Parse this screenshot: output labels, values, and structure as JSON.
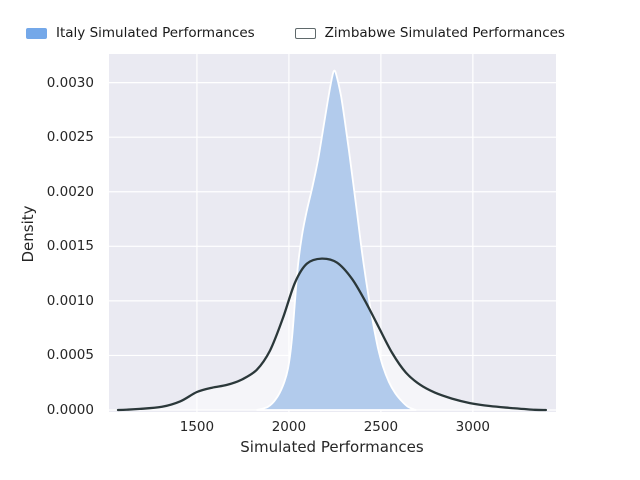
{
  "chart_data": {
    "type": "area",
    "chart_kind": "kde-density-overlay",
    "title": "",
    "xlabel": "Simulated Performances",
    "ylabel": "Density",
    "xlim": [
      1022,
      3452
    ],
    "ylim": [
      -1.8e-05,
      0.003262
    ],
    "x_ticks": [
      1500,
      2000,
      2500,
      3000
    ],
    "x_tick_labels": [
      "1500",
      "2000",
      "2500",
      "3000"
    ],
    "y_ticks": [
      0.0,
      0.0005,
      0.001,
      0.0015,
      0.002,
      0.0025,
      0.003
    ],
    "y_tick_labels": [
      "0.0000",
      "0.0005",
      "0.0010",
      "0.0015",
      "0.0020",
      "0.0025",
      "0.0030"
    ],
    "grid": true,
    "grid_color": "#ffffff",
    "plot_background": "#eaeaf2",
    "figure_background": "#ffffff",
    "text_color": "#262626",
    "legend_position": "top",
    "series": [
      {
        "name": "Italy Simulated Performances",
        "style": "filled-area",
        "area_fill": "#b2cbec",
        "edge_color": "#ffffff",
        "swatch": {
          "fill": "#74a8e9",
          "border": "#74a8e9"
        },
        "peak": {
          "x": 2247,
          "density": 0.00311
        },
        "points": [
          [
            1826,
            0.0
          ],
          [
            1886,
            3e-05
          ],
          [
            1929,
            0.0001
          ],
          [
            1967,
            0.00022
          ],
          [
            1995,
            0.00038
          ],
          [
            2016,
            0.00064
          ],
          [
            2033,
            0.001
          ],
          [
            2049,
            0.00132
          ],
          [
            2071,
            0.0016
          ],
          [
            2098,
            0.00183
          ],
          [
            2130,
            0.00206
          ],
          [
            2158,
            0.00229
          ],
          [
            2185,
            0.00256
          ],
          [
            2212,
            0.00284
          ],
          [
            2234,
            0.00304
          ],
          [
            2247,
            0.00311
          ],
          [
            2261,
            0.00305
          ],
          [
            2283,
            0.00288
          ],
          [
            2304,
            0.00265
          ],
          [
            2326,
            0.00238
          ],
          [
            2348,
            0.0021
          ],
          [
            2370,
            0.00181
          ],
          [
            2391,
            0.00153
          ],
          [
            2413,
            0.00126
          ],
          [
            2435,
            0.00102
          ],
          [
            2457,
            0.0008
          ],
          [
            2484,
            0.00057
          ],
          [
            2511,
            0.0004
          ],
          [
            2543,
            0.00026
          ],
          [
            2576,
            0.00016
          ],
          [
            2609,
            9e-05
          ],
          [
            2647,
            3e-05
          ],
          [
            2690,
            0.0
          ]
        ]
      },
      {
        "name": "Zimbabwe Simulated Performances",
        "style": "line-with-light-fill",
        "area_fill": "rgba(255,255,255,0.5)",
        "edge_color": "#2b383a",
        "swatch": {
          "fill": "#ffffff",
          "border": "#5f696b"
        },
        "peak": {
          "x": 2179,
          "density": 0.00139
        },
        "points": [
          [
            1071,
            0.0
          ],
          [
            1190,
            1e-05
          ],
          [
            1310,
            3e-05
          ],
          [
            1410,
            8e-05
          ],
          [
            1500,
            0.000165
          ],
          [
            1582,
            0.000205
          ],
          [
            1663,
            0.00023
          ],
          [
            1745,
            0.00028
          ],
          [
            1826,
            0.00037
          ],
          [
            1897,
            0.000545
          ],
          [
            1967,
            0.00084
          ],
          [
            2033,
            0.001168
          ],
          [
            2098,
            0.001342
          ],
          [
            2179,
            0.001387
          ],
          [
            2261,
            0.001351
          ],
          [
            2342,
            0.001204
          ],
          [
            2413,
            0.001003
          ],
          [
            2484,
            0.000774
          ],
          [
            2560,
            0.000527
          ],
          [
            2636,
            0.000343
          ],
          [
            2712,
            0.000233
          ],
          [
            2793,
            0.00016
          ],
          [
            2886,
            0.000105
          ],
          [
            2984,
            6.4e-05
          ],
          [
            3092,
            3.7e-05
          ],
          [
            3212,
            1.8e-05
          ],
          [
            3337,
            2e-06
          ],
          [
            3397,
            0.0
          ]
        ]
      }
    ]
  }
}
